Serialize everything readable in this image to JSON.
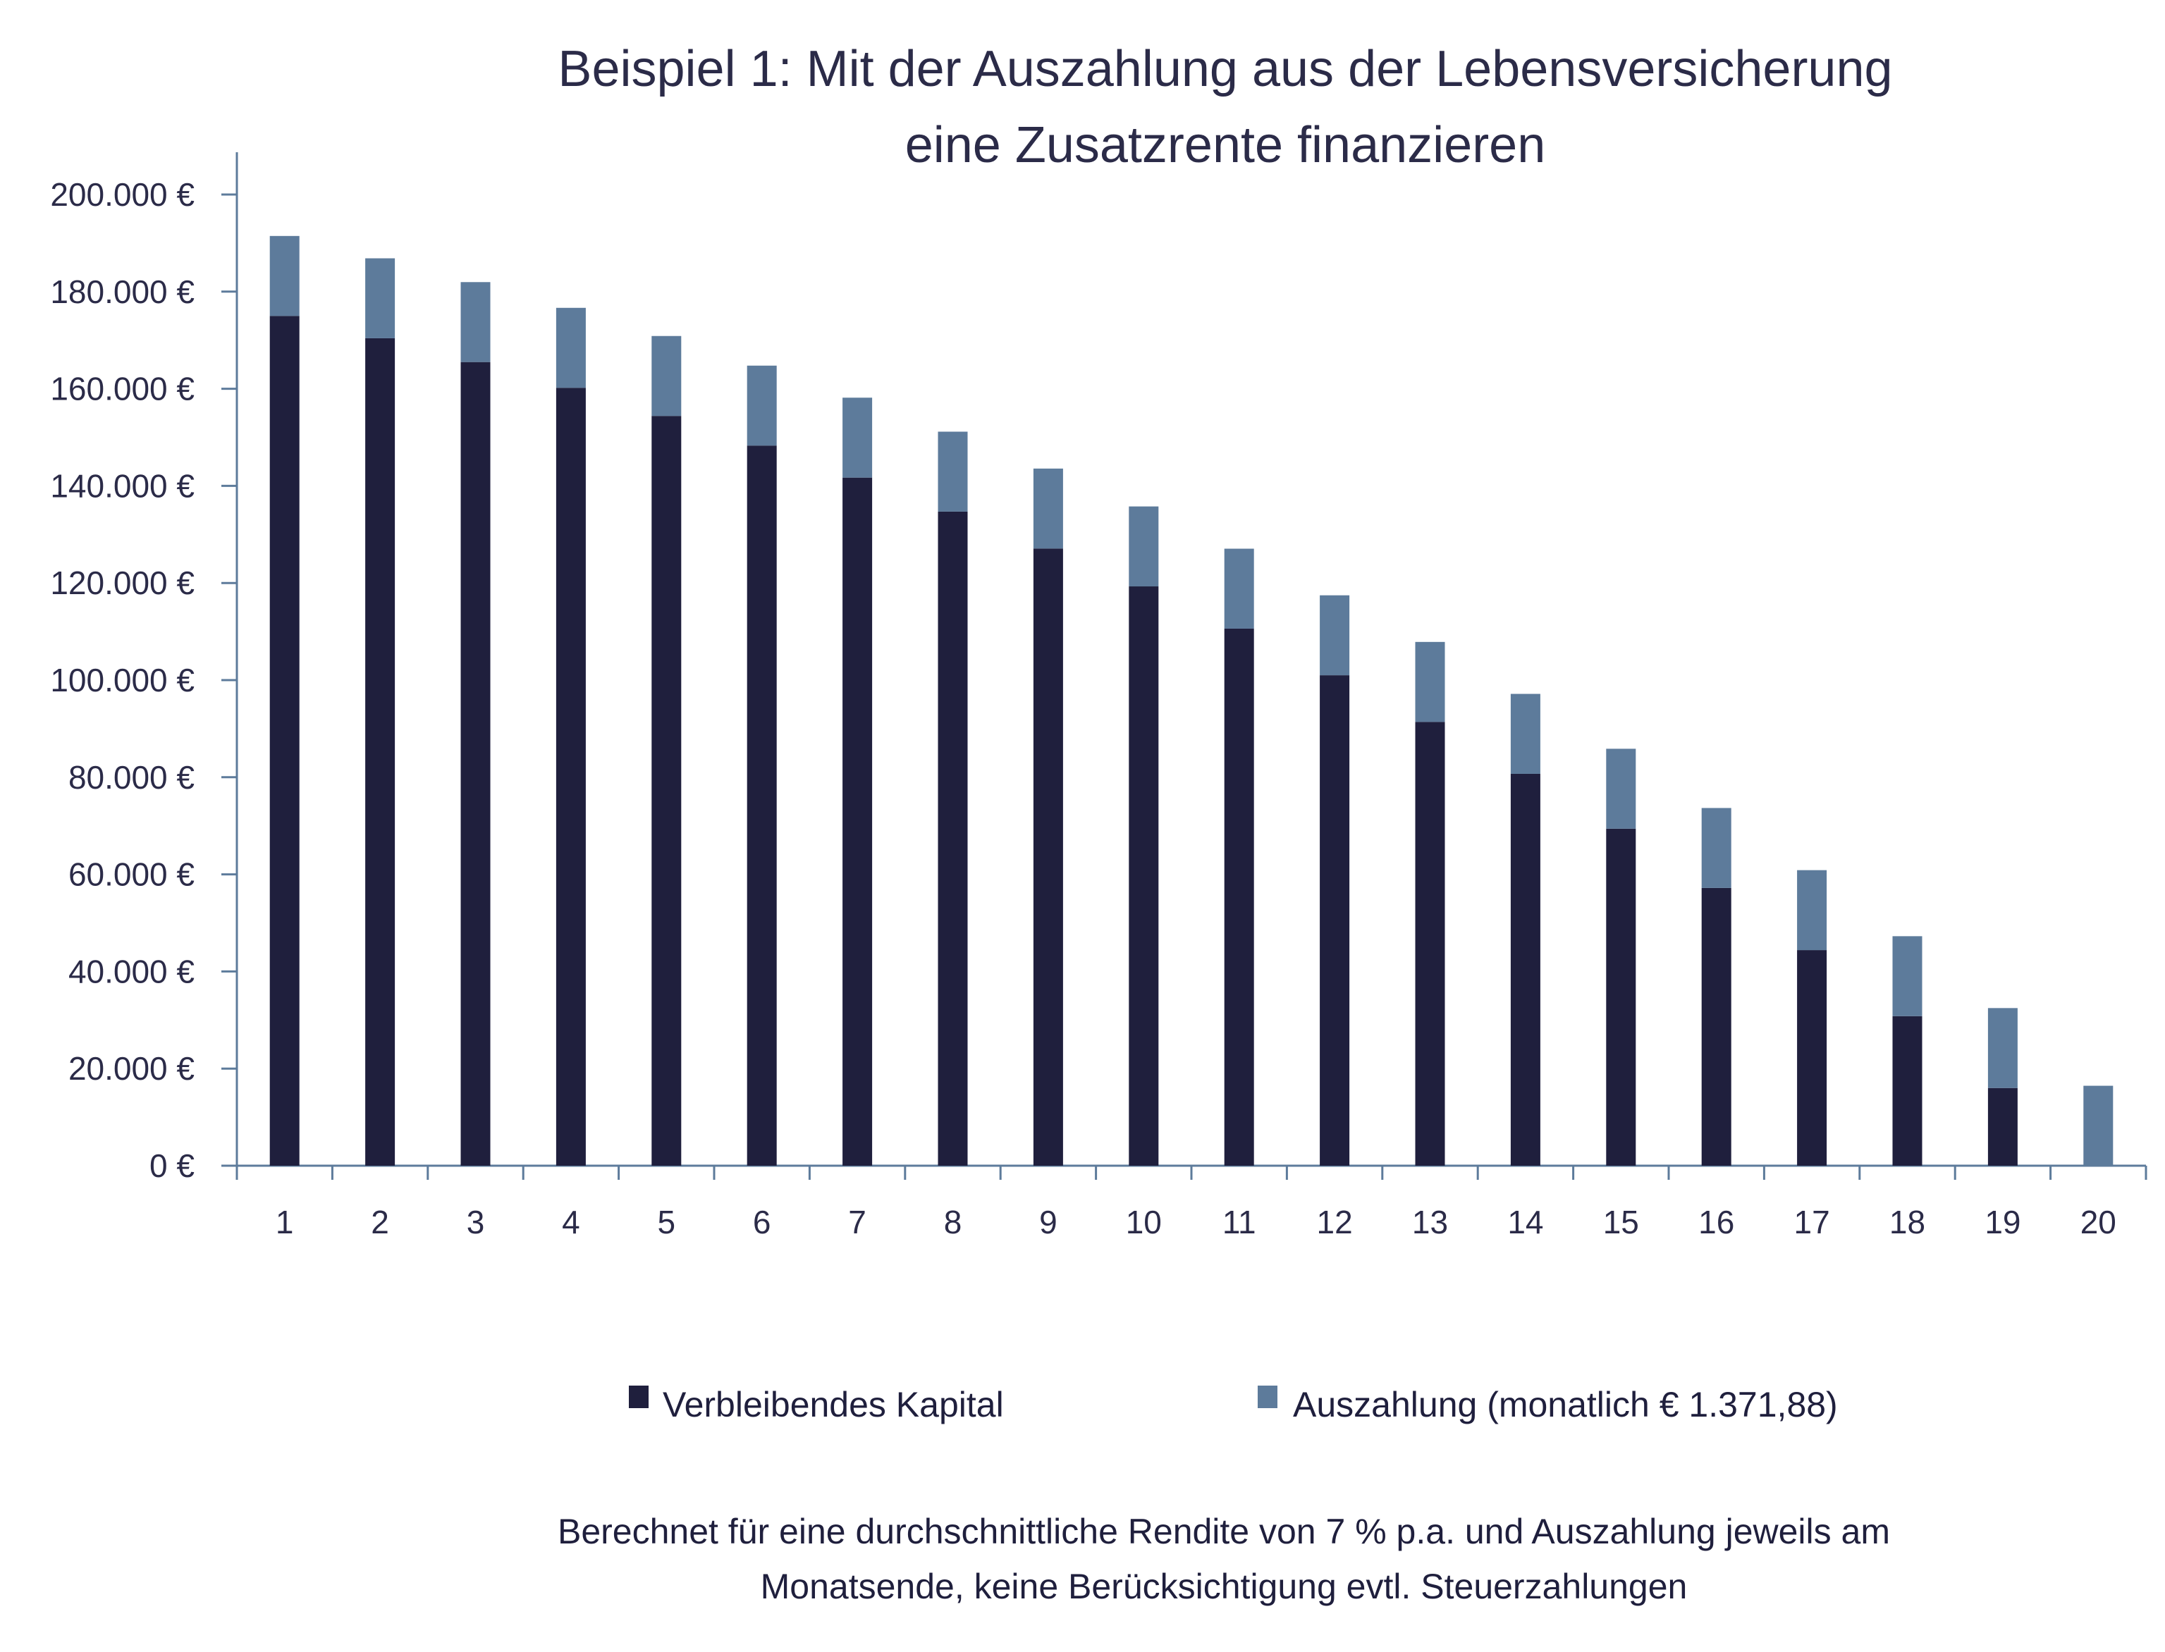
{
  "chart_data": {
    "type": "bar",
    "stacked": true,
    "title": [
      "Beispiel 1: Mit der Auszahlung aus der Lebensversicherung",
      "eine Zusatzrente finanzieren"
    ],
    "xlabel": "",
    "ylabel": "",
    "ylim": [
      0,
      200000
    ],
    "yticks": [
      0,
      20000,
      40000,
      60000,
      80000,
      100000,
      120000,
      140000,
      160000,
      180000,
      200000
    ],
    "ytick_labels": [
      "0 €",
      "20.000 €",
      "40.000 €",
      "60.000 €",
      "80.000 €",
      "100.000 €",
      "120.000 €",
      "140.000 €",
      "160.000 €",
      "180.000 €",
      "200.000 €"
    ],
    "categories": [
      "1",
      "2",
      "3",
      "4",
      "5",
      "6",
      "7",
      "8",
      "9",
      "10",
      "11",
      "12",
      "13",
      "14",
      "15",
      "16",
      "17",
      "18",
      "19",
      "20"
    ],
    "grid": false,
    "legend_position": "bottom",
    "series": [
      {
        "name": "Verbleibendes Kapital",
        "color": "#1f1f3d",
        "values": [
          175000,
          170400,
          165500,
          160200,
          154400,
          148300,
          141700,
          134700,
          127100,
          119300,
          110600,
          101000,
          91400,
          80700,
          69400,
          57200,
          44400,
          30800,
          16000,
          0
        ]
      },
      {
        "name": "Auszahlung (monatlich € 1.371,88)",
        "color": "#5d7b9b",
        "values": [
          16463,
          16463,
          16463,
          16463,
          16463,
          16463,
          16463,
          16463,
          16463,
          16463,
          16463,
          16463,
          16463,
          16463,
          16463,
          16463,
          16463,
          16463,
          16463,
          16463
        ]
      }
    ],
    "footnote": [
      "Berechnet für eine durchschnittliche Rendite von 7 % p.a. und Auszahlung jeweils am",
      "Monatsende, keine Berücksichtigung evtl. Steuerzahlungen"
    ]
  }
}
